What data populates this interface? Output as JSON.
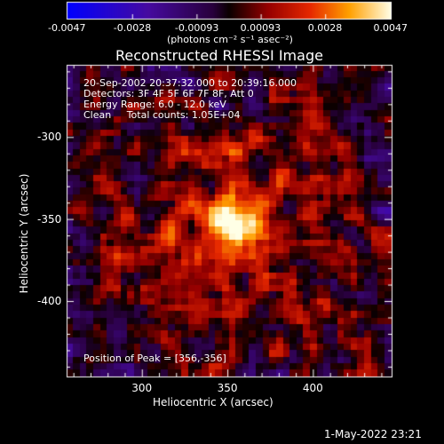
{
  "colorbar": {
    "ticks": [
      "-0.0047",
      "-0.0028",
      "-0.00093",
      "0.00093",
      "0.0028",
      "0.0047"
    ],
    "unit_label": "(photons cm⁻² s⁻¹ asec⁻²)"
  },
  "chart_data": {
    "type": "heatmap",
    "title": "Reconstructed RHESSI Image",
    "xlabel": "Heliocentric X (arcsec)",
    "ylabel": "Heliocentric Y (arcsec)",
    "xlim": [
      256,
      446
    ],
    "ylim": [
      -446,
      -256
    ],
    "xticks": [
      300,
      350,
      400
    ],
    "yticks": [
      -300,
      -350,
      -400
    ],
    "color_range": [
      -0.0047,
      0.0047
    ],
    "colormap": "rainbow-hot",
    "peak": [
      356,
      -356
    ],
    "annotations": [
      "20-Sep-2002 20:37:32.000 to 20:39:16.000",
      "Detectors: 3F 4F 5F 6F 7F 8F, Att 0",
      "Energy Range: 6.0 - 12.0 keV",
      "Clean     Total counts: 1.05E+04"
    ],
    "peak_label": "Position of Peak = [356,-356]"
  },
  "footer_date": "1-May-2022 23:21"
}
